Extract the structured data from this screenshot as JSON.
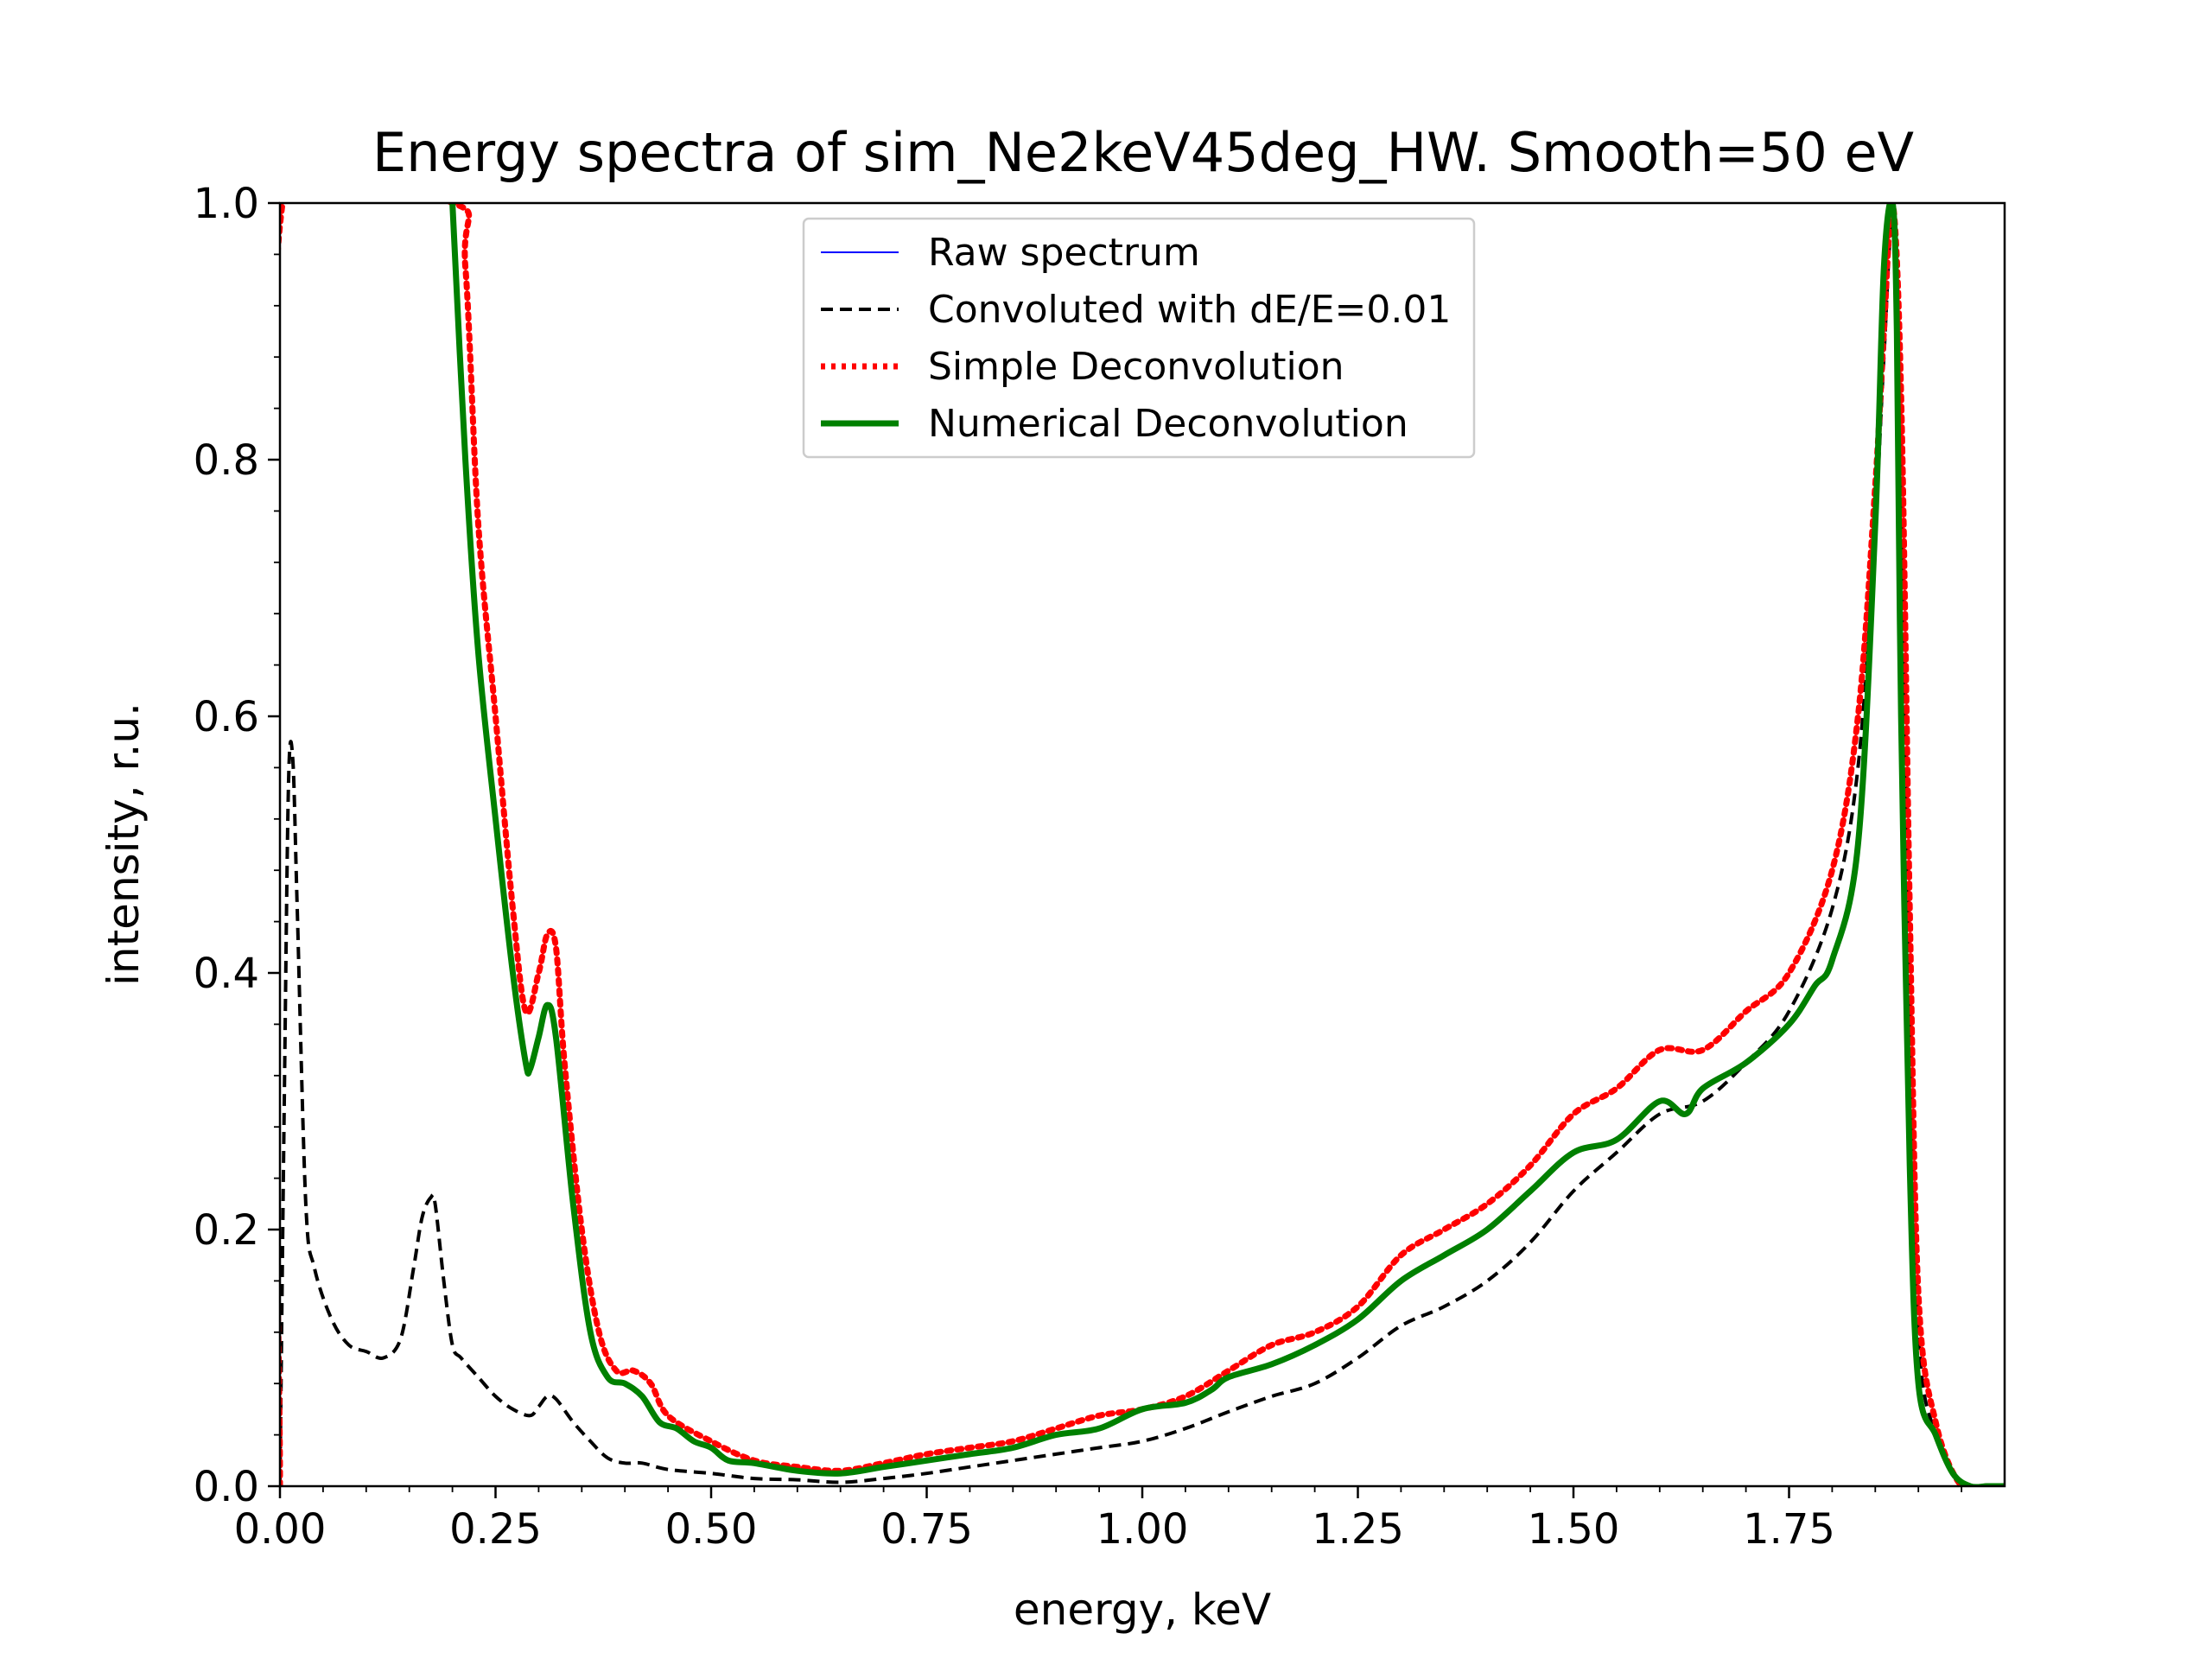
{
  "chart_data": {
    "type": "line",
    "title": "Energy spectra of sim_Ne2keV45deg_HW. Smooth=50 eV",
    "xlabel": "energy, keV",
    "ylabel": "intensity, r.u.",
    "xlim": [
      0.0,
      2.0
    ],
    "ylim": [
      0.0,
      1.0
    ],
    "xticks": [
      "0.00",
      "0.25",
      "0.50",
      "0.75",
      "1.00",
      "1.25",
      "1.50",
      "1.75"
    ],
    "yticks": [
      "0.0",
      "0.2",
      "0.4",
      "0.6",
      "0.8",
      "1.0"
    ],
    "grid": false,
    "legend_position": "top-center",
    "series": [
      {
        "name": "Raw spectrum",
        "color": "#0000ff",
        "style": "solid-thin",
        "x": [],
        "y": []
      },
      {
        "name": "Convoluted with dE/E=0.01",
        "color": "#000000",
        "style": "dashed",
        "x": [
          0.0,
          0.005,
          0.01,
          0.015,
          0.02,
          0.03,
          0.04,
          0.06,
          0.08,
          0.1,
          0.12,
          0.14,
          0.155,
          0.165,
          0.175,
          0.18,
          0.19,
          0.2,
          0.21,
          0.23,
          0.25,
          0.27,
          0.29,
          0.3,
          0.31,
          0.32,
          0.34,
          0.36,
          0.38,
          0.4,
          0.42,
          0.45,
          0.5,
          0.55,
          0.6,
          0.65,
          0.7,
          0.75,
          0.8,
          0.85,
          0.9,
          0.95,
          1.0,
          1.05,
          1.1,
          1.15,
          1.2,
          1.25,
          1.3,
          1.35,
          1.4,
          1.45,
          1.5,
          1.55,
          1.6,
          1.65,
          1.7,
          1.75,
          1.8,
          1.83,
          1.85,
          1.86,
          1.87,
          1.88,
          1.89,
          1.9,
          1.92,
          1.95,
          1.98,
          2.0
        ],
        "y": [
          0.0,
          0.3,
          0.55,
          0.565,
          0.45,
          0.22,
          0.17,
          0.13,
          0.11,
          0.105,
          0.1,
          0.115,
          0.17,
          0.21,
          0.225,
          0.22,
          0.16,
          0.11,
          0.1,
          0.085,
          0.07,
          0.06,
          0.055,
          0.062,
          0.07,
          0.068,
          0.05,
          0.035,
          0.022,
          0.018,
          0.018,
          0.013,
          0.01,
          0.006,
          0.005,
          0.003,
          0.006,
          0.01,
          0.015,
          0.02,
          0.025,
          0.03,
          0.035,
          0.045,
          0.058,
          0.07,
          0.08,
          0.1,
          0.125,
          0.14,
          0.16,
          0.19,
          0.23,
          0.26,
          0.29,
          0.3,
          0.33,
          0.37,
          0.45,
          0.56,
          0.75,
          0.88,
          0.98,
          0.8,
          0.4,
          0.12,
          0.04,
          0.0,
          0.0,
          0.0
        ]
      },
      {
        "name": "Simple Deconvolution",
        "color": "#ff0000",
        "style": "dotted",
        "x": [
          0.0,
          0.003,
          0.2,
          0.215,
          0.23,
          0.25,
          0.27,
          0.285,
          0.3,
          0.31,
          0.32,
          0.33,
          0.35,
          0.37,
          0.39,
          0.41,
          0.43,
          0.45,
          0.5,
          0.55,
          0.6,
          0.65,
          0.7,
          0.75,
          0.8,
          0.85,
          0.9,
          0.95,
          1.0,
          1.05,
          1.1,
          1.15,
          1.2,
          1.25,
          1.3,
          1.35,
          1.4,
          1.45,
          1.5,
          1.55,
          1.6,
          1.65,
          1.7,
          1.75,
          1.8,
          1.83,
          1.85,
          1.86,
          1.87,
          1.88,
          1.89,
          1.9,
          1.92,
          1.95,
          1.98,
          2.0
        ],
        "y": [
          0.0,
          1.0,
          1.0,
          0.95,
          0.75,
          0.6,
          0.45,
          0.37,
          0.4,
          0.43,
          0.42,
          0.33,
          0.2,
          0.12,
          0.09,
          0.09,
          0.08,
          0.055,
          0.035,
          0.02,
          0.015,
          0.012,
          0.018,
          0.025,
          0.03,
          0.035,
          0.045,
          0.055,
          0.06,
          0.07,
          0.09,
          0.11,
          0.12,
          0.14,
          0.18,
          0.2,
          0.22,
          0.25,
          0.29,
          0.31,
          0.34,
          0.34,
          0.37,
          0.4,
          0.48,
          0.6,
          0.78,
          0.9,
          1.0,
          0.85,
          0.45,
          0.15,
          0.05,
          0.0,
          0.0,
          0.0
        ]
      },
      {
        "name": "Numerical Deconvolution",
        "color": "#008000",
        "style": "solid-thick",
        "x": [
          0.2,
          0.215,
          0.23,
          0.25,
          0.27,
          0.285,
          0.29,
          0.3,
          0.31,
          0.32,
          0.34,
          0.36,
          0.38,
          0.4,
          0.42,
          0.44,
          0.46,
          0.48,
          0.5,
          0.52,
          0.55,
          0.6,
          0.65,
          0.7,
          0.75,
          0.8,
          0.85,
          0.9,
          0.95,
          1.0,
          1.05,
          1.08,
          1.1,
          1.15,
          1.2,
          1.25,
          1.3,
          1.35,
          1.4,
          1.45,
          1.5,
          1.55,
          1.6,
          1.63,
          1.65,
          1.7,
          1.75,
          1.78,
          1.8,
          1.83,
          1.85,
          1.86,
          1.87,
          1.875,
          1.88,
          1.89,
          1.9,
          1.92,
          1.94,
          1.96,
          1.98,
          2.0
        ],
        "y": [
          1.0,
          0.8,
          0.65,
          0.52,
          0.4,
          0.33,
          0.325,
          0.35,
          0.375,
          0.35,
          0.22,
          0.12,
          0.085,
          0.08,
          0.07,
          0.05,
          0.045,
          0.035,
          0.03,
          0.02,
          0.018,
          0.012,
          0.01,
          0.015,
          0.02,
          0.025,
          0.03,
          0.04,
          0.045,
          0.06,
          0.065,
          0.075,
          0.085,
          0.095,
          0.11,
          0.13,
          0.16,
          0.18,
          0.2,
          0.23,
          0.26,
          0.27,
          0.3,
          0.29,
          0.31,
          0.33,
          0.36,
          0.39,
          0.41,
          0.5,
          0.75,
          0.95,
          1.0,
          0.9,
          0.6,
          0.25,
          0.08,
          0.04,
          0.01,
          0.0,
          0.0,
          0.0
        ]
      }
    ]
  }
}
